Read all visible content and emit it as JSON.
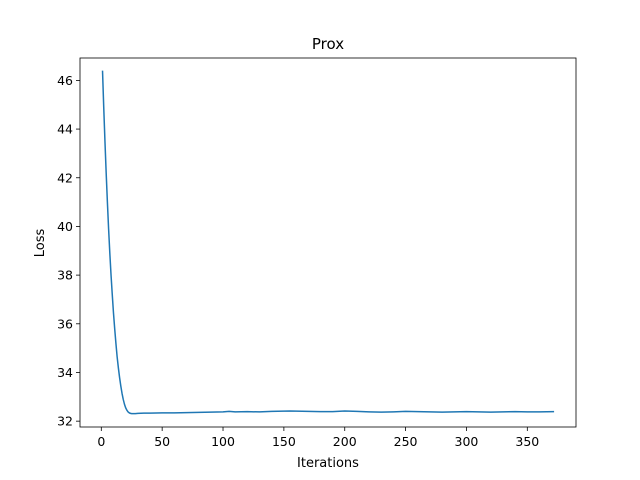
{
  "chart_data": {
    "type": "line",
    "title": "Prox",
    "xlabel": "Iterations",
    "ylabel": "Loss",
    "xlim": [
      -17.5,
      390
    ],
    "ylim": [
      31.76,
      46.92
    ],
    "xticks": [
      0,
      50,
      100,
      150,
      200,
      250,
      300,
      350
    ],
    "yticks": [
      32,
      34,
      36,
      38,
      40,
      42,
      44,
      46
    ],
    "grid": false,
    "line_color": "#1f77b4",
    "series": [
      {
        "x": [
          1,
          2,
          3,
          4,
          5,
          6,
          7,
          8,
          9,
          10,
          11,
          12,
          13,
          14,
          15,
          16,
          17,
          18,
          19,
          20,
          21,
          22,
          23,
          24,
          25,
          26,
          28,
          30,
          35,
          40,
          50,
          60,
          70,
          80,
          90,
          100,
          105,
          110,
          120,
          130,
          140,
          150,
          155,
          160,
          170,
          180,
          190,
          200,
          210,
          220,
          230,
          240,
          250,
          260,
          270,
          280,
          290,
          300,
          310,
          320,
          330,
          340,
          350,
          360,
          372
        ],
        "y": [
          46.4,
          44.9,
          43.5,
          42.2,
          41.0,
          39.9,
          38.9,
          38.0,
          37.2,
          36.45,
          35.8,
          35.2,
          34.65,
          34.2,
          33.8,
          33.45,
          33.15,
          32.9,
          32.7,
          32.55,
          32.45,
          32.38,
          32.34,
          32.32,
          32.31,
          32.31,
          32.31,
          32.32,
          32.33,
          32.33,
          32.34,
          32.34,
          32.35,
          32.36,
          32.37,
          32.38,
          32.4,
          32.38,
          32.39,
          32.38,
          32.4,
          32.41,
          32.42,
          32.41,
          32.4,
          32.39,
          32.39,
          32.42,
          32.4,
          32.38,
          32.37,
          32.38,
          32.4,
          32.39,
          32.38,
          32.37,
          32.38,
          32.39,
          32.38,
          32.37,
          32.38,
          32.39,
          32.38,
          32.38,
          32.39
        ]
      }
    ]
  }
}
